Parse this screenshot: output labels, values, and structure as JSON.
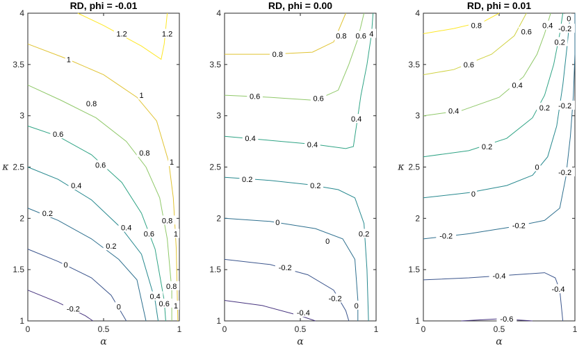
{
  "chart_data": [
    {
      "type": "contour",
      "title": "RD, phi = -0.01",
      "xlabel": "α",
      "ylabel": "κ",
      "xlim": [
        0,
        1
      ],
      "ylim": [
        1,
        4
      ],
      "xticks": [
        "0",
        "0.5",
        "1"
      ],
      "yticks": [
        "1",
        "1.5",
        "2",
        "2.5",
        "3",
        "3.5",
        "4"
      ],
      "levels": [
        {
          "level": -0.2,
          "label": "-0.2",
          "color": "#46337e",
          "points": [
            [
              0,
              1.3
            ],
            [
              0.2,
              1.18
            ],
            [
              0.38,
              1.05
            ],
            [
              0.43,
              1.0
            ]
          ],
          "labels": [
            [
              0.3,
              1.12
            ]
          ]
        },
        {
          "level": 0,
          "label": "0",
          "color": "#3a548c",
          "points": [
            [
              0,
              1.7
            ],
            [
              0.2,
              1.58
            ],
            [
              0.42,
              1.42
            ],
            [
              0.55,
              1.25
            ],
            [
              0.65,
              1.0
            ]
          ],
          "labels": [
            [
              0.25,
              1.55
            ],
            [
              0.6,
              1.14
            ]
          ]
        },
        {
          "level": 0.2,
          "label": "0.2",
          "color": "#2d6f8e",
          "points": [
            [
              0,
              2.1
            ],
            [
              0.2,
              1.98
            ],
            [
              0.42,
              1.8
            ],
            [
              0.6,
              1.6
            ],
            [
              0.72,
              1.4
            ],
            [
              0.78,
              1.0
            ]
          ],
          "labels": [
            [
              0.13,
              2.05
            ],
            [
              0.55,
              1.73
            ]
          ]
        },
        {
          "level": 0.4,
          "label": "0.4",
          "color": "#26888e",
          "points": [
            [
              0,
              2.5
            ],
            [
              0.2,
              2.38
            ],
            [
              0.42,
              2.18
            ],
            [
              0.62,
              1.9
            ],
            [
              0.75,
              1.65
            ],
            [
              0.84,
              1.2
            ],
            [
              0.86,
              1.0
            ]
          ],
          "labels": [
            [
              0.32,
              2.32
            ],
            [
              0.65,
              1.91
            ],
            [
              0.84,
              1.24
            ]
          ]
        },
        {
          "level": 0.6,
          "label": "0.6",
          "color": "#2ea384",
          "points": [
            [
              0,
              2.9
            ],
            [
              0.2,
              2.8
            ],
            [
              0.42,
              2.62
            ],
            [
              0.62,
              2.35
            ],
            [
              0.75,
              2.05
            ],
            [
              0.84,
              1.7
            ],
            [
              0.9,
              1.2
            ],
            [
              0.91,
              1.0
            ]
          ],
          "labels": [
            [
              0.2,
              2.82
            ],
            [
              0.48,
              2.52
            ],
            [
              0.8,
              1.85
            ],
            [
              0.9,
              1.17
            ]
          ]
        },
        {
          "level": 0.8,
          "label": "0.8",
          "color": "#8fc868",
          "points": [
            [
              0,
              3.3
            ],
            [
              0.22,
              3.15
            ],
            [
              0.45,
              2.98
            ],
            [
              0.65,
              2.75
            ],
            [
              0.78,
              2.5
            ],
            [
              0.87,
              2.2
            ],
            [
              0.92,
              1.8
            ],
            [
              0.95,
              1.3
            ],
            [
              0.95,
              1.0
            ]
          ],
          "labels": [
            [
              0.42,
              3.12
            ],
            [
              0.77,
              2.64
            ],
            [
              0.92,
              1.98
            ],
            [
              0.95,
              1.34
            ]
          ]
        },
        {
          "level": 1,
          "label": "1",
          "color": "#e0c332",
          "points": [
            [
              0,
              3.7
            ],
            [
              0.25,
              3.56
            ],
            [
              0.5,
              3.4
            ],
            [
              0.72,
              3.18
            ],
            [
              0.85,
              2.95
            ],
            [
              0.93,
              2.55
            ],
            [
              0.96,
              2.2
            ],
            [
              0.98,
              1.7
            ],
            [
              0.99,
              1.0
            ]
          ],
          "labels": [
            [
              0.27,
              3.55
            ],
            [
              0.75,
              3.2
            ],
            [
              0.95,
              2.55
            ],
            [
              0.98,
              1.85
            ],
            [
              0.99,
              1.15
            ]
          ]
        },
        {
          "level": 1.2,
          "label": "1.2",
          "color": "#fde725",
          "points": [
            [
              0.33,
              4.0
            ],
            [
              0.5,
              3.88
            ],
            [
              0.75,
              3.68
            ],
            [
              0.88,
              3.55
            ],
            [
              0.9,
              3.7
            ],
            [
              0.92,
              4.0
            ]
          ],
          "labels": [
            [
              0.62,
              3.8
            ],
            [
              0.92,
              3.8
            ]
          ]
        }
      ]
    },
    {
      "type": "contour",
      "title": "RD, phi = 0.00",
      "xlabel": "α",
      "ylabel": "",
      "xlim": [
        0,
        1
      ],
      "ylim": [
        1,
        4
      ],
      "xticks": [
        "0",
        "0.5",
        "1"
      ],
      "yticks": [
        "1",
        "1.5",
        "2",
        "2.5",
        "3",
        "3.5",
        "4"
      ],
      "levels": [
        {
          "level": -0.4,
          "label": "-0.4",
          "color": "#46337e",
          "points": [
            [
              0,
              1.2
            ],
            [
              0.25,
              1.15
            ],
            [
              0.5,
              1.05
            ],
            [
              0.6,
              1.0
            ]
          ],
          "labels": [
            [
              0.52,
              1.08
            ]
          ]
        },
        {
          "level": -0.2,
          "label": "-0.2",
          "color": "#3a548c",
          "points": [
            [
              0,
              1.6
            ],
            [
              0.3,
              1.55
            ],
            [
              0.55,
              1.45
            ],
            [
              0.72,
              1.3
            ],
            [
              0.8,
              1.1
            ],
            [
              0.82,
              1.0
            ]
          ],
          "labels": [
            [
              0.4,
              1.52
            ],
            [
              0.73,
              1.22
            ]
          ]
        },
        {
          "level": 0,
          "label": "0",
          "color": "#2d6f8e",
          "points": [
            [
              0,
              2.0
            ],
            [
              0.3,
              1.97
            ],
            [
              0.6,
              1.9
            ],
            [
              0.78,
              1.8
            ],
            [
              0.86,
              1.6
            ],
            [
              0.88,
              1.2
            ],
            [
              0.88,
              1.0
            ]
          ],
          "labels": [
            [
              0.35,
              1.96
            ],
            [
              0.68,
              1.78
            ],
            [
              0.87,
              1.15
            ]
          ]
        },
        {
          "level": 0.2,
          "label": "0.2",
          "color": "#26888e",
          "points": [
            [
              0,
              2.4
            ],
            [
              0.3,
              2.37
            ],
            [
              0.55,
              2.33
            ],
            [
              0.75,
              2.28
            ],
            [
              0.86,
              2.2
            ],
            [
              0.92,
              1.95
            ],
            [
              0.94,
              1.5
            ],
            [
              0.95,
              1.0
            ]
          ],
          "labels": [
            [
              0.15,
              2.38
            ],
            [
              0.6,
              2.32
            ],
            [
              0.92,
              1.85
            ]
          ]
        },
        {
          "level": 0.4,
          "label": "0.4",
          "color": "#2ea384",
          "points": [
            [
              0,
              2.8
            ],
            [
              0.3,
              2.76
            ],
            [
              0.6,
              2.72
            ],
            [
              0.8,
              2.68
            ],
            [
              0.85,
              2.7
            ],
            [
              0.87,
              2.9
            ],
            [
              0.9,
              3.2
            ],
            [
              0.94,
              3.5
            ],
            [
              0.97,
              3.8
            ],
            [
              0.98,
              4.0
            ]
          ],
          "labels": [
            [
              0.17,
              2.78
            ],
            [
              0.58,
              2.72
            ],
            [
              0.87,
              2.97
            ],
            [
              0.97,
              3.8
            ]
          ]
        },
        {
          "level": 0.6,
          "label": "0.6",
          "color": "#8fc868",
          "points": [
            [
              0,
              3.2
            ],
            [
              0.3,
              3.18
            ],
            [
              0.6,
              3.15
            ],
            [
              0.75,
              3.25
            ],
            [
              0.82,
              3.5
            ],
            [
              0.88,
              3.75
            ],
            [
              0.92,
              4.0
            ]
          ],
          "labels": [
            [
              0.2,
              3.19
            ],
            [
              0.62,
              3.17
            ],
            [
              0.9,
              3.78
            ]
          ]
        },
        {
          "level": 0.8,
          "label": "0.8",
          "color": "#e0c332",
          "points": [
            [
              0,
              3.6
            ],
            [
              0.3,
              3.6
            ],
            [
              0.58,
              3.62
            ],
            [
              0.72,
              3.72
            ],
            [
              0.8,
              4.0
            ]
          ],
          "labels": [
            [
              0.35,
              3.6
            ],
            [
              0.77,
              3.78
            ]
          ]
        }
      ]
    },
    {
      "type": "contour",
      "title": "RD, phi = 0.01",
      "xlabel": "α",
      "ylabel": "κ",
      "xlim": [
        0,
        1
      ],
      "ylim": [
        1,
        4
      ],
      "xticks": [
        "0",
        "0.5",
        "1"
      ],
      "yticks": [
        "1",
        "1.5",
        "2",
        "2.5",
        "3",
        "3.5",
        "4"
      ],
      "levels": [
        {
          "level": -0.6,
          "label": "-0.6",
          "color": "#46337e",
          "points": [
            [
              0.25,
              1.0
            ],
            [
              0.5,
              1.02
            ],
            [
              0.72,
              1.0
            ]
          ],
          "labels": [
            [
              0.55,
              1.02
            ]
          ]
        },
        {
          "level": -0.4,
          "label": "-0.4",
          "color": "#3a548c",
          "points": [
            [
              0,
              1.4
            ],
            [
              0.3,
              1.42
            ],
            [
              0.6,
              1.45
            ],
            [
              0.8,
              1.47
            ],
            [
              0.87,
              1.42
            ],
            [
              0.9,
              1.3
            ],
            [
              0.92,
              1.0
            ]
          ],
          "labels": [
            [
              0.5,
              1.44
            ],
            [
              0.89,
              1.31
            ]
          ]
        },
        {
          "level": -0.2,
          "label": "-0.2",
          "color": "#2d6f8e",
          "points": [
            [
              0,
              1.8
            ],
            [
              0.3,
              1.85
            ],
            [
              0.6,
              1.92
            ],
            [
              0.8,
              1.98
            ],
            [
              0.9,
              2.1
            ],
            [
              0.94,
              2.4
            ],
            [
              0.97,
              2.8
            ],
            [
              0.99,
              3.2
            ],
            [
              1.0,
              3.6
            ],
            [
              1.0,
              4.0
            ]
          ],
          "labels": [
            [
              0.15,
              1.83
            ],
            [
              0.63,
              1.93
            ],
            [
              0.95,
              2.45
            ],
            [
              0.99,
              3.1
            ],
            [
              1.0,
              3.85
            ]
          ]
        },
        {
          "level": 0,
          "label": "0",
          "color": "#26888e",
          "points": [
            [
              0,
              2.2
            ],
            [
              0.3,
              2.25
            ],
            [
              0.55,
              2.32
            ],
            [
              0.72,
              2.42
            ],
            [
              0.82,
              2.6
            ],
            [
              0.88,
              2.9
            ],
            [
              0.92,
              3.3
            ],
            [
              0.95,
              3.7
            ],
            [
              0.97,
              4.0
            ]
          ],
          "labels": [
            [
              0.33,
              2.24
            ],
            [
              0.75,
              2.5
            ],
            [
              0.96,
              3.95
            ]
          ]
        },
        {
          "level": 0.2,
          "label": "0.2",
          "color": "#2ea384",
          "points": [
            [
              0,
              2.6
            ],
            [
              0.3,
              2.66
            ],
            [
              0.55,
              2.78
            ],
            [
              0.72,
              2.98
            ],
            [
              0.8,
              3.2
            ],
            [
              0.86,
              3.5
            ],
            [
              0.9,
              3.8
            ],
            [
              0.92,
              4.0
            ]
          ],
          "labels": [
            [
              0.42,
              2.7
            ],
            [
              0.8,
              3.08
            ],
            [
              0.9,
              3.72
            ]
          ]
        },
        {
          "level": 0.4,
          "label": "0.4",
          "color": "#8fc868",
          "points": [
            [
              0,
              3.0
            ],
            [
              0.25,
              3.05
            ],
            [
              0.5,
              3.18
            ],
            [
              0.66,
              3.38
            ],
            [
              0.75,
              3.6
            ],
            [
              0.8,
              3.8
            ],
            [
              0.84,
              4.0
            ]
          ],
          "labels": [
            [
              0.2,
              3.05
            ],
            [
              0.62,
              3.3
            ],
            [
              0.82,
              3.88
            ]
          ]
        },
        {
          "level": 0.6,
          "label": "0.6",
          "color": "#cfd140",
          "points": [
            [
              0,
              3.4
            ],
            [
              0.2,
              3.45
            ],
            [
              0.45,
              3.6
            ],
            [
              0.6,
              3.78
            ],
            [
              0.68,
              4.0
            ]
          ],
          "labels": [
            [
              0.3,
              3.5
            ],
            [
              0.68,
              3.82
            ]
          ]
        },
        {
          "level": 0.8,
          "label": "0.8",
          "color": "#fde725",
          "points": [
            [
              0,
              3.8
            ],
            [
              0.2,
              3.85
            ],
            [
              0.4,
              3.92
            ],
            [
              0.5,
              4.0
            ]
          ],
          "labels": [
            [
              0.35,
              3.88
            ]
          ]
        }
      ]
    }
  ]
}
